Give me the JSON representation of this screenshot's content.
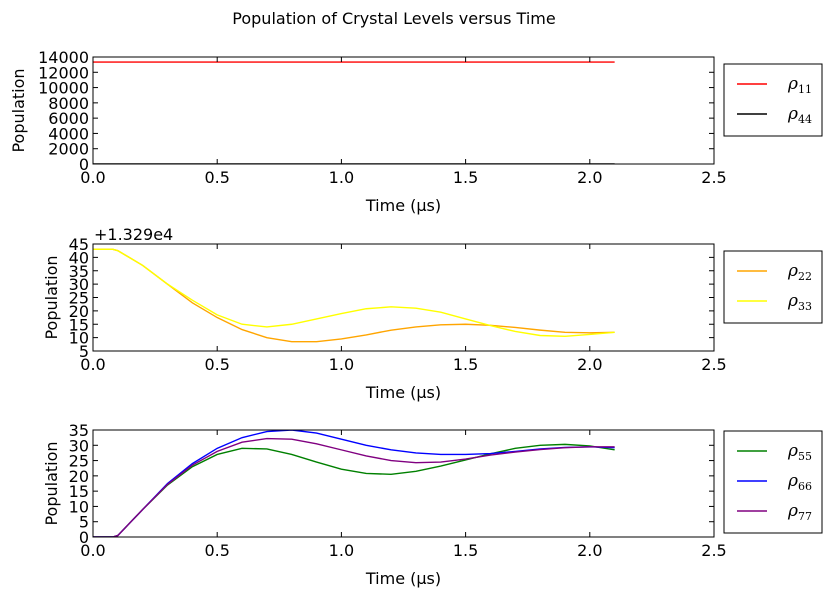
{
  "figure_title": "Population of Crystal Levels versus Time",
  "chart_data": [
    {
      "type": "line",
      "title": "",
      "xlabel": "Time (μs)",
      "ylabel": "Population",
      "xlim": [
        0,
        2.5
      ],
      "ylim": [
        0,
        14000
      ],
      "xticks": [
        0.0,
        0.5,
        1.0,
        1.5,
        2.0,
        2.5
      ],
      "xtick_labels": [
        "0.0",
        "0.5",
        "1.0",
        "1.5",
        "2.0",
        "2.5"
      ],
      "yticks": [
        0,
        2000,
        4000,
        6000,
        8000,
        10000,
        12000,
        14000
      ],
      "ytick_labels": [
        "0",
        "2000",
        "4000",
        "6000",
        "8000",
        "10000",
        "12000",
        "14000"
      ],
      "y_offset_label": "",
      "legend_placement": "outside-right",
      "series": [
        {
          "name": "ρ11",
          "symbol": "ρ",
          "subscript": "11",
          "color": "#ff0000",
          "x": [
            0,
            2.1
          ],
          "y": [
            13333,
            13333
          ]
        },
        {
          "name": "ρ44",
          "symbol": "ρ",
          "subscript": "44",
          "color": "#000000",
          "x": [
            0,
            2.1
          ],
          "y": [
            15,
            15
          ]
        }
      ]
    },
    {
      "type": "line",
      "title": "",
      "xlabel": "Time (μs)",
      "ylabel": "Population",
      "xlim": [
        0,
        2.5
      ],
      "ylim": [
        5,
        45
      ],
      "xticks": [
        0.0,
        0.5,
        1.0,
        1.5,
        2.0,
        2.5
      ],
      "xtick_labels": [
        "0.0",
        "0.5",
        "1.0",
        "1.5",
        "2.0",
        "2.5"
      ],
      "yticks": [
        5,
        10,
        15,
        20,
        25,
        30,
        35,
        40,
        45
      ],
      "ytick_labels": [
        "5",
        "10",
        "15",
        "20",
        "25",
        "30",
        "35",
        "40",
        "45"
      ],
      "y_offset_label": "+1.329e4",
      "legend_placement": "outside-right",
      "series": [
        {
          "name": "ρ22",
          "symbol": "ρ",
          "subscript": "22",
          "color": "#ffa500",
          "x": [
            0,
            0.08,
            0.1,
            0.2,
            0.3,
            0.4,
            0.5,
            0.6,
            0.7,
            0.8,
            0.9,
            1.0,
            1.1,
            1.2,
            1.3,
            1.4,
            1.5,
            1.6,
            1.7,
            1.8,
            1.9,
            2.0,
            2.1
          ],
          "y": [
            43,
            43,
            42.5,
            37,
            30,
            23,
            17.5,
            13,
            10,
            8.5,
            8.5,
            9.5,
            11,
            12.8,
            14,
            14.8,
            15,
            14.6,
            13.8,
            12.8,
            12,
            11.8,
            12
          ]
        },
        {
          "name": "ρ33",
          "symbol": "ρ",
          "subscript": "33",
          "color": "#ffff00",
          "x": [
            0,
            0.08,
            0.1,
            0.2,
            0.3,
            0.4,
            0.5,
            0.6,
            0.7,
            0.8,
            0.9,
            1.0,
            1.1,
            1.2,
            1.3,
            1.4,
            1.5,
            1.6,
            1.7,
            1.8,
            1.9,
            2.0,
            2.1
          ],
          "y": [
            43,
            43,
            42.5,
            37,
            30,
            24,
            18.5,
            15,
            14,
            15,
            17,
            19,
            20.8,
            21.5,
            21,
            19.5,
            17,
            14.5,
            12.3,
            10.8,
            10.5,
            11.2,
            12
          ]
        }
      ]
    },
    {
      "type": "line",
      "title": "",
      "xlabel": "Time (μs)",
      "ylabel": "Population",
      "xlim": [
        0,
        2.5
      ],
      "ylim": [
        0,
        35
      ],
      "xticks": [
        0.0,
        0.5,
        1.0,
        1.5,
        2.0,
        2.5
      ],
      "xtick_labels": [
        "0.0",
        "0.5",
        "1.0",
        "1.5",
        "2.0",
        "2.5"
      ],
      "yticks": [
        0,
        5,
        10,
        15,
        20,
        25,
        30,
        35
      ],
      "ytick_labels": [
        "0",
        "5",
        "10",
        "15",
        "20",
        "25",
        "30",
        "35"
      ],
      "y_offset_label": "",
      "legend_placement": "outside-right",
      "series": [
        {
          "name": "ρ55",
          "symbol": "ρ",
          "subscript": "55",
          "color": "#008000",
          "x": [
            0,
            0.08,
            0.1,
            0.2,
            0.3,
            0.4,
            0.5,
            0.6,
            0.7,
            0.8,
            0.9,
            1.0,
            1.1,
            1.2,
            1.3,
            1.4,
            1.5,
            1.6,
            1.7,
            1.8,
            1.9,
            2.0,
            2.1
          ],
          "y": [
            0,
            0,
            0.5,
            9,
            17,
            23,
            27,
            29,
            28.8,
            27,
            24.5,
            22.2,
            20.8,
            20.5,
            21.5,
            23.2,
            25.2,
            27.2,
            29,
            30,
            30.3,
            29.8,
            28.5
          ]
        },
        {
          "name": "ρ66",
          "symbol": "ρ",
          "subscript": "66",
          "color": "#0000ff",
          "x": [
            0,
            0.08,
            0.1,
            0.2,
            0.3,
            0.4,
            0.5,
            0.6,
            0.7,
            0.8,
            0.9,
            1.0,
            1.1,
            1.2,
            1.3,
            1.4,
            1.5,
            1.6,
            1.7,
            1.8,
            1.9,
            2.0,
            2.1
          ],
          "y": [
            0,
            0,
            0.5,
            9,
            17.5,
            24,
            29,
            32.5,
            34.5,
            35,
            34,
            32,
            30,
            28.5,
            27.5,
            27,
            27,
            27.3,
            28,
            28.8,
            29.3,
            29.5,
            29.2
          ]
        },
        {
          "name": "ρ77",
          "symbol": "ρ",
          "subscript": "77",
          "color": "#800080",
          "x": [
            0,
            0.08,
            0.1,
            0.2,
            0.3,
            0.4,
            0.5,
            0.6,
            0.7,
            0.8,
            0.9,
            1.0,
            1.1,
            1.2,
            1.3,
            1.4,
            1.5,
            1.6,
            1.7,
            1.8,
            1.9,
            2.0,
            2.1
          ],
          "y": [
            0,
            0,
            0.5,
            9,
            17.2,
            23.5,
            28,
            31,
            32.2,
            32,
            30.5,
            28.5,
            26.5,
            25,
            24.3,
            24.5,
            25.5,
            26.8,
            27.8,
            28.6,
            29.2,
            29.5,
            29.5
          ]
        }
      ]
    }
  ]
}
